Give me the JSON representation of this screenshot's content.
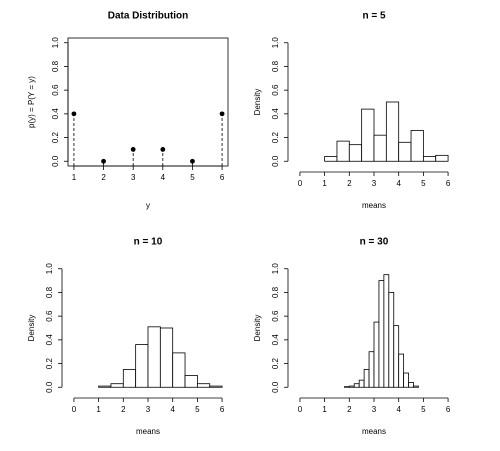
{
  "chart_data": [
    {
      "type": "stem",
      "title": "Data Distribution",
      "xlabel": "y",
      "ylabel": "p(y) = P(Y = y)",
      "x": [
        1,
        2,
        3,
        4,
        5,
        6
      ],
      "values": [
        0.4,
        0,
        0.1,
        0.1,
        0,
        0.4
      ],
      "color": "#000000",
      "xlim": [
        0.8,
        6.2
      ],
      "ylim": [
        -0.04,
        1.04
      ],
      "xticks": [
        1,
        2,
        3,
        4,
        5,
        6
      ],
      "yticks": [
        {
          "value": 0,
          "label": "0.0"
        },
        0.2,
        0.4,
        0.6,
        0.8,
        {
          "value": 1,
          "label": "1.0"
        }
      ],
      "frame": true
    },
    {
      "type": "histogram",
      "title": "n =  5",
      "xlabel": "means",
      "ylabel": "Density",
      "bins": [
        1,
        1.5,
        2,
        2.5,
        3,
        3.5,
        4,
        4.5,
        5,
        5.5,
        6
      ],
      "values": [
        0.04,
        0.17,
        0.14,
        0.44,
        0.22,
        0.5,
        0.16,
        0.26,
        0.04,
        0.05
      ],
      "color": "#ffffff",
      "xlim": [
        -0.24,
        6.24
      ],
      "ylim": [
        -0.04,
        1.04
      ],
      "xticks": [
        0,
        1,
        2,
        3,
        4,
        5,
        6
      ],
      "yticks": [
        {
          "value": 0,
          "label": "0.0"
        },
        0.2,
        0.4,
        0.6,
        0.8,
        {
          "value": 1,
          "label": "1.0"
        }
      ],
      "frame": false
    },
    {
      "type": "histogram",
      "title": "n =  10",
      "xlabel": "means",
      "ylabel": "Density",
      "bins": [
        1,
        1.5,
        2,
        2.5,
        3,
        3.5,
        4,
        4.5,
        5,
        5.5,
        6
      ],
      "values": [
        0.01,
        0.03,
        0.15,
        0.36,
        0.51,
        0.5,
        0.29,
        0.1,
        0.03,
        0.01
      ],
      "color": "#ffffff",
      "xlim": [
        -0.24,
        6.24
      ],
      "ylim": [
        -0.04,
        1.04
      ],
      "xticks": [
        0,
        1,
        2,
        3,
        4,
        5,
        6
      ],
      "yticks": [
        {
          "value": 0,
          "label": "0.0"
        },
        0.2,
        0.4,
        0.6,
        0.8,
        {
          "value": 1,
          "label": "1.0"
        }
      ],
      "frame": false
    },
    {
      "type": "histogram",
      "title": "n =  30",
      "xlabel": "means",
      "ylabel": "Density",
      "bins": [
        1.8,
        2,
        2.2,
        2.4,
        2.6,
        2.8,
        3,
        3.2,
        3.4,
        3.6,
        3.8,
        4,
        4.2,
        4.4,
        4.6,
        4.8
      ],
      "values": [
        0.005,
        0.01,
        0.03,
        0.06,
        0.15,
        0.3,
        0.55,
        0.9,
        0.95,
        0.8,
        0.52,
        0.28,
        0.12,
        0.04,
        0.01
      ],
      "color": "#ffffff",
      "xlim": [
        -0.24,
        6.24
      ],
      "ylim": [
        -0.04,
        1.04
      ],
      "xticks": [
        0,
        1,
        2,
        3,
        4,
        5,
        6
      ],
      "yticks": [
        {
          "value": 0,
          "label": "0.0"
        },
        0.2,
        0.4,
        0.6,
        0.8,
        {
          "value": 1,
          "label": "1.0"
        }
      ],
      "frame": false
    }
  ]
}
